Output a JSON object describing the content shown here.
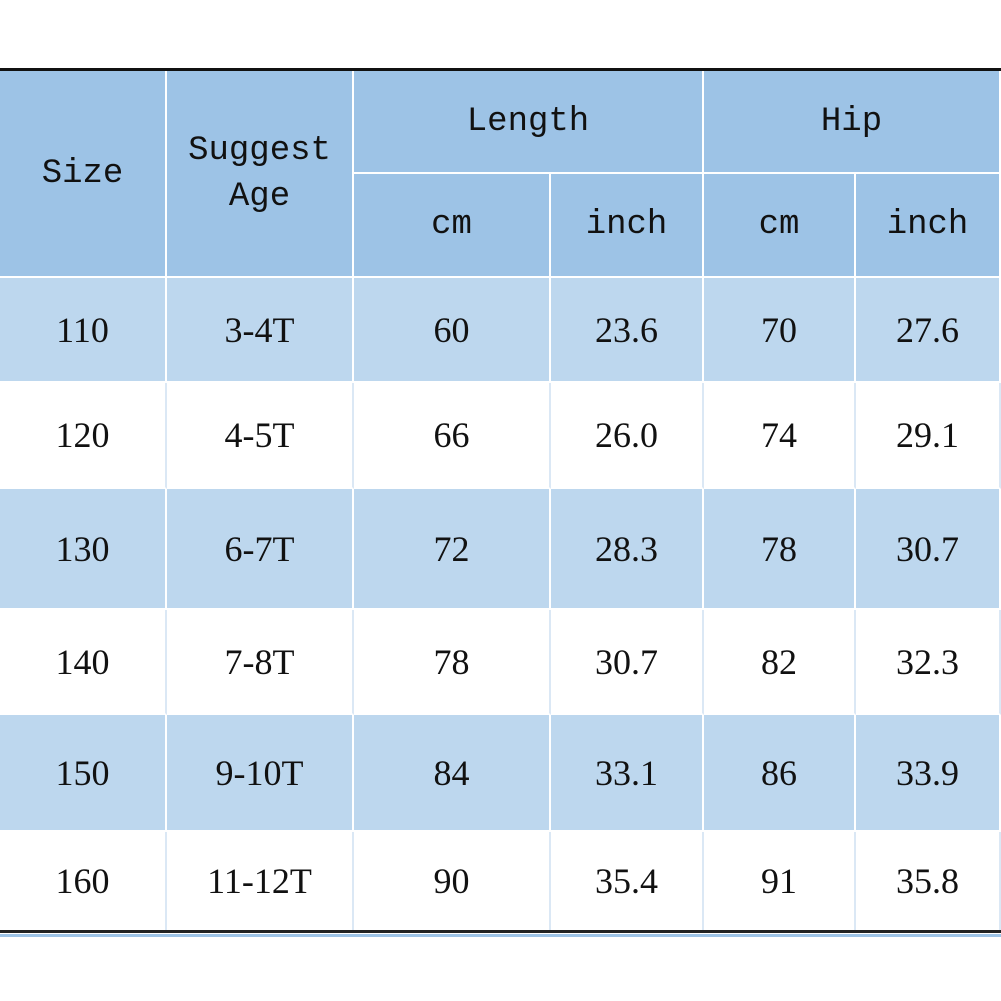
{
  "table": {
    "header": {
      "size": "Size",
      "suggest_age": "Suggest Age",
      "length": "Length",
      "hip": "Hip",
      "units": [
        "cm",
        "inch",
        "cm",
        "inch"
      ]
    },
    "rows": [
      [
        "110",
        "3-4T",
        "60",
        "23.6",
        "70",
        "27.6"
      ],
      [
        "120",
        "4-5T",
        "66",
        "26.0",
        "74",
        "29.1"
      ],
      [
        "130",
        "6-7T",
        "72",
        "28.3",
        "78",
        "30.7"
      ],
      [
        "140",
        "7-8T",
        "78",
        "30.7",
        "82",
        "32.3"
      ],
      [
        "150",
        "9-10T",
        "84",
        "33.1",
        "86",
        "33.9"
      ],
      [
        "160",
        "11-12T",
        "90",
        "35.4",
        "91",
        "35.8"
      ]
    ]
  }
}
